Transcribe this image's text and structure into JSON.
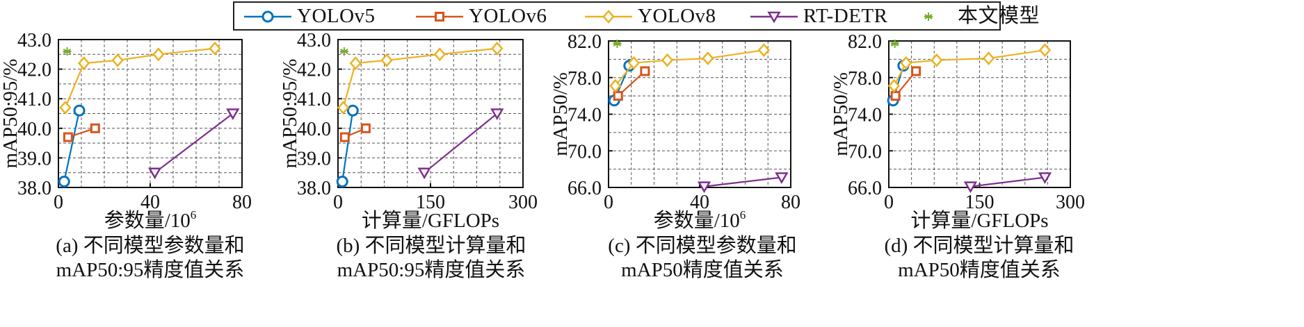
{
  "legend": [
    {
      "name": "YOLOv5",
      "color": "#0072BD",
      "marker": "circle"
    },
    {
      "name": "YOLOv6",
      "color": "#D95319",
      "marker": "square"
    },
    {
      "name": "YOLOv8",
      "color": "#EDB120",
      "marker": "diamond"
    },
    {
      "name": "RT-DETR",
      "color": "#7E2F8E",
      "marker": "triangle-down"
    },
    {
      "name": "本文模型",
      "color": "#77AC30",
      "marker": "asterisk"
    }
  ],
  "chart_data": [
    {
      "type": "line",
      "xlabel": "参数量/10",
      "xlabel_sup": "6",
      "ylabel": "mAP50:95/%",
      "xlim": [
        0,
        80
      ],
      "ylim": [
        38.0,
        43.0
      ],
      "xticks": [
        0,
        40,
        80
      ],
      "yticks": [
        38.0,
        39.0,
        40.0,
        41.0,
        42.0,
        43.0
      ],
      "ytick_labels": [
        "38.0",
        "39.0",
        "40.0",
        "41.0",
        "42.0",
        "43.0"
      ],
      "xgrid": [
        0,
        10,
        20,
        30,
        40,
        50,
        60,
        70,
        80
      ],
      "ygrid": [
        38.0,
        38.5,
        39.0,
        39.5,
        40.0,
        40.5,
        41.0,
        41.5,
        42.0,
        42.5,
        43.0
      ],
      "grid": true,
      "caption_line1": "(a) 不同模型参数量和",
      "caption_line2": "mAP50:95精度值关系",
      "series": [
        {
          "name": "YOLOv5",
          "x": [
            2.5,
            9.1
          ],
          "y": [
            38.2,
            40.6
          ]
        },
        {
          "name": "YOLOv6",
          "x": [
            4.2,
            16.0
          ],
          "y": [
            39.7,
            40.0
          ]
        },
        {
          "name": "YOLOv8",
          "x": [
            3.0,
            11.1,
            25.8,
            43.6,
            68.2
          ],
          "y": [
            40.7,
            42.2,
            42.3,
            42.5,
            42.7
          ]
        },
        {
          "name": "RT-DETR",
          "x": [
            42.0,
            76.0
          ],
          "y": [
            38.5,
            40.5
          ]
        },
        {
          "name": "本文模型",
          "x": [
            3.8
          ],
          "y": [
            42.6
          ]
        }
      ]
    },
    {
      "type": "line",
      "xlabel": "计算量/GFLOPs",
      "xlabel_sup": "",
      "ylabel": "mAP50:95/%",
      "xlim": [
        0,
        300
      ],
      "ylim": [
        38.0,
        43.0
      ],
      "xticks": [
        0,
        150,
        300
      ],
      "yticks": [
        38.0,
        39.0,
        40.0,
        41.0,
        42.0,
        43.0
      ],
      "ytick_labels": [
        "38.0",
        "39.0",
        "40.0",
        "41.0",
        "42.0",
        "43.0"
      ],
      "xgrid": [
        0,
        37.5,
        75,
        112.5,
        150,
        187.5,
        225,
        262.5,
        300
      ],
      "ygrid": [
        38.0,
        38.5,
        39.0,
        39.5,
        40.0,
        40.5,
        41.0,
        41.5,
        42.0,
        42.5,
        43.0
      ],
      "grid": true,
      "caption_line1": "(b) 不同模型计算量和",
      "caption_line2": "mAP50:95精度值关系",
      "series": [
        {
          "name": "YOLOv5",
          "x": [
            7.0,
            24.0
          ],
          "y": [
            38.2,
            40.6
          ]
        },
        {
          "name": "YOLOv6",
          "x": [
            11.0,
            45.0
          ],
          "y": [
            39.7,
            40.0
          ]
        },
        {
          "name": "YOLOv8",
          "x": [
            8.5,
            28.5,
            79.0,
            165.0,
            258.0
          ],
          "y": [
            40.7,
            42.2,
            42.3,
            42.5,
            42.7
          ]
        },
        {
          "name": "RT-DETR",
          "x": [
            140.0,
            258.0
          ],
          "y": [
            38.5,
            40.5
          ]
        },
        {
          "name": "本文模型",
          "x": [
            10.0
          ],
          "y": [
            42.6
          ]
        }
      ]
    },
    {
      "type": "line",
      "xlabel": "参数量/10",
      "xlabel_sup": "6",
      "ylabel": "mAP50/%",
      "xlim": [
        0,
        80
      ],
      "ylim": [
        66.0,
        82.0
      ],
      "xticks": [
        0,
        40,
        80
      ],
      "yticks": [
        66.0,
        70.0,
        74.0,
        78.0,
        82.0
      ],
      "ytick_labels": [
        "66.0",
        "70.0",
        "74.0",
        "78.0",
        "82.0"
      ],
      "xgrid": [
        0,
        10,
        20,
        30,
        40,
        50,
        60,
        70,
        80
      ],
      "ygrid": [
        66,
        68,
        70,
        72,
        74,
        76,
        78,
        80,
        82
      ],
      "grid": true,
      "caption_line1": "(c) 不同模型参数量和",
      "caption_line2": "mAP50精度值关系",
      "series": [
        {
          "name": "YOLOv5",
          "x": [
            2.5,
            9.1
          ],
          "y": [
            75.5,
            79.3
          ]
        },
        {
          "name": "YOLOv6",
          "x": [
            4.2,
            16.0
          ],
          "y": [
            76.0,
            78.7
          ]
        },
        {
          "name": "YOLOv8",
          "x": [
            3.0,
            11.1,
            25.8,
            43.6,
            68.2
          ],
          "y": [
            77.1,
            79.6,
            79.9,
            80.1,
            81.0
          ]
        },
        {
          "name": "RT-DETR",
          "x": [
            42.0,
            76.0
          ],
          "y": [
            66.1,
            67.1
          ]
        },
        {
          "name": "本文模型",
          "x": [
            3.8
          ],
          "y": [
            81.7
          ]
        }
      ]
    },
    {
      "type": "line",
      "xlabel": "计算量/GFLOPs",
      "xlabel_sup": "",
      "ylabel": "mAP50/%",
      "xlim": [
        0,
        300
      ],
      "ylim": [
        66.0,
        82.0
      ],
      "xticks": [
        0,
        150,
        300
      ],
      "yticks": [
        66.0,
        70.0,
        74.0,
        78.0,
        82.0
      ],
      "ytick_labels": [
        "66.0",
        "70.0",
        "74.0",
        "78.0",
        "82.0"
      ],
      "xgrid": [
        0,
        37.5,
        75,
        112.5,
        150,
        187.5,
        225,
        262.5,
        300
      ],
      "ygrid": [
        66,
        68,
        70,
        72,
        74,
        76,
        78,
        80,
        82
      ],
      "grid": true,
      "caption_line1": "(d) 不同模型计算量和",
      "caption_line2": "mAP50精度值关系",
      "series": [
        {
          "name": "YOLOv5",
          "x": [
            7.0,
            24.0
          ],
          "y": [
            75.5,
            79.3
          ]
        },
        {
          "name": "YOLOv6",
          "x": [
            11.0,
            45.0
          ],
          "y": [
            76.0,
            78.7
          ]
        },
        {
          "name": "YOLOv8",
          "x": [
            8.5,
            28.5,
            79.0,
            165.0,
            258.0
          ],
          "y": [
            77.1,
            79.6,
            79.9,
            80.1,
            81.0
          ]
        },
        {
          "name": "RT-DETR",
          "x": [
            135.0,
            258.0
          ],
          "y": [
            66.1,
            67.1
          ]
        },
        {
          "name": "本文模型",
          "x": [
            10.0
          ],
          "y": [
            81.7
          ]
        }
      ]
    }
  ]
}
